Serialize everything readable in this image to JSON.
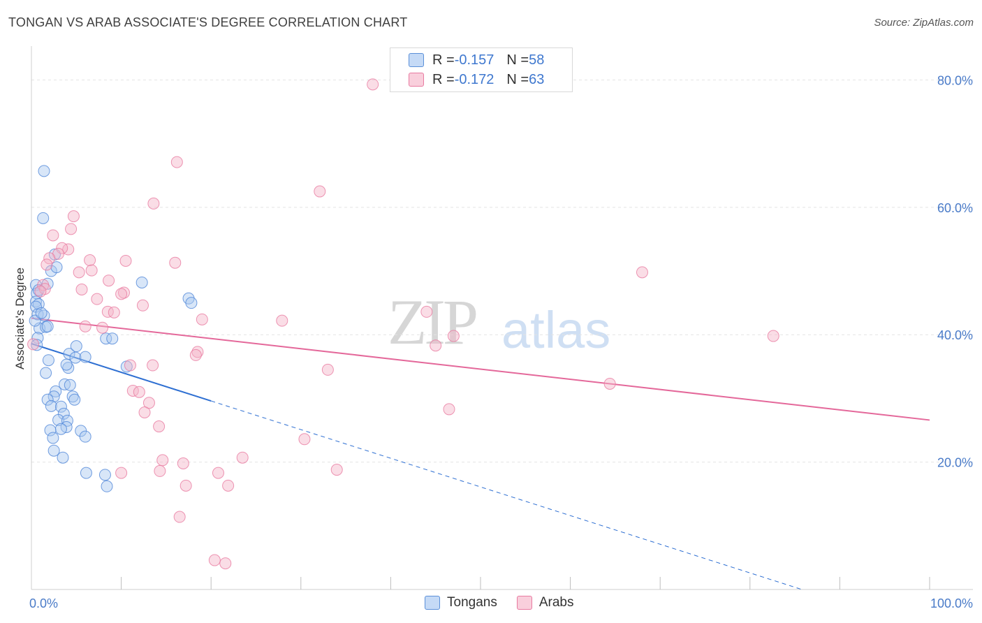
{
  "title": "TONGAN VS ARAB ASSOCIATE'S DEGREE CORRELATION CHART",
  "source": "Source: ZipAtlas.com",
  "watermark": {
    "zip": "ZIP",
    "atlas": "atlas"
  },
  "legend_top": {
    "rows": [
      {
        "r_label": "R = ",
        "r_value": "-0.157",
        "n_label": "N = ",
        "n_value": "58",
        "color": "#a9c8f0"
      },
      {
        "r_label": "R = ",
        "r_value": "-0.172",
        "n_label": "N = ",
        "n_value": "63",
        "color": "#f5b3c8"
      }
    ]
  },
  "legend_bottom": [
    {
      "label": "Tongans",
      "color": "#a9c8f0"
    },
    {
      "label": "Arabs",
      "color": "#f5b3c8"
    }
  ],
  "colors": {
    "tongan_fill": "#a9c8f0",
    "tongan_stroke": "#4f86d8",
    "tongan_line": "#2e6fd2",
    "arab_fill": "#f5b3c8",
    "arab_stroke": "#e87aa0",
    "arab_line": "#e4689a",
    "grid": "#e4e4e4",
    "tick": "#4a7bc8"
  },
  "chart_data": {
    "type": "scatter",
    "title": "TONGAN VS ARAB ASSOCIATE'S DEGREE CORRELATION CHART",
    "xlabel": "",
    "ylabel": "Associate's Degree",
    "xlim": [
      0,
      100
    ],
    "ylim": [
      0,
      84
    ],
    "x_tick_labels": [
      {
        "value": 0,
        "label": "0.0%"
      },
      {
        "value": 100,
        "label": "100.0%"
      }
    ],
    "y_tick_labels": [
      {
        "value": 20,
        "label": "20.0%"
      },
      {
        "value": 40,
        "label": "40.0%"
      },
      {
        "value": 60,
        "label": "60.0%"
      },
      {
        "value": 80,
        "label": "80.0%"
      }
    ],
    "series": [
      {
        "name": "Tongans",
        "r": -0.157,
        "n": 58,
        "trend": {
          "x0": 0,
          "y0": 38.6,
          "x1": 20,
          "y1": 29.6,
          "dash_to_x": 100
        },
        "points": [
          [
            1.4,
            65.7
          ],
          [
            1.3,
            58.3
          ],
          [
            0.5,
            47.8
          ],
          [
            0.6,
            46.5
          ],
          [
            0.5,
            45.2
          ],
          [
            0.8,
            44.8
          ],
          [
            0.5,
            44.4
          ],
          [
            0.7,
            43.2
          ],
          [
            1.4,
            43.0
          ],
          [
            0.9,
            41.0
          ],
          [
            1.6,
            41.2
          ],
          [
            1.8,
            48.0
          ],
          [
            2.2,
            50.0
          ],
          [
            2.8,
            50.6
          ],
          [
            2.6,
            52.6
          ],
          [
            0.7,
            39.5
          ],
          [
            0.8,
            47.0
          ],
          [
            1.9,
            36.0
          ],
          [
            1.6,
            34.0
          ],
          [
            4.2,
            37.0
          ],
          [
            5.0,
            38.2
          ],
          [
            4.9,
            36.4
          ],
          [
            4.1,
            34.8
          ],
          [
            3.7,
            32.2
          ],
          [
            4.3,
            32.1
          ],
          [
            2.7,
            31.1
          ],
          [
            2.5,
            30.3
          ],
          [
            1.8,
            29.8
          ],
          [
            4.6,
            30.3
          ],
          [
            4.8,
            29.8
          ],
          [
            2.2,
            28.8
          ],
          [
            3.3,
            28.7
          ],
          [
            3.6,
            27.6
          ],
          [
            3.0,
            26.6
          ],
          [
            4.0,
            26.5
          ],
          [
            3.9,
            25.5
          ],
          [
            3.3,
            25.2
          ],
          [
            2.1,
            25.0
          ],
          [
            5.5,
            24.9
          ],
          [
            6.0,
            24.0
          ],
          [
            2.4,
            23.8
          ],
          [
            2.5,
            21.8
          ],
          [
            3.5,
            20.7
          ],
          [
            6.1,
            18.3
          ],
          [
            8.2,
            18.0
          ],
          [
            8.4,
            16.2
          ],
          [
            8.3,
            39.4
          ],
          [
            9.0,
            39.4
          ],
          [
            10.6,
            35.0
          ],
          [
            12.3,
            48.2
          ],
          [
            17.5,
            45.7
          ],
          [
            17.8,
            45.0
          ],
          [
            0.4,
            42.2
          ],
          [
            1.1,
            43.4
          ],
          [
            1.8,
            41.3
          ],
          [
            3.9,
            35.3
          ],
          [
            6.0,
            36.5
          ],
          [
            0.6,
            38.4
          ]
        ]
      },
      {
        "name": "Arabs",
        "r": -0.172,
        "n": 63,
        "trend": {
          "x0": 0,
          "y0": 42.6,
          "x1": 100,
          "y1": 26.6
        },
        "points": [
          [
            38.0,
            79.3
          ],
          [
            16.2,
            67.1
          ],
          [
            32.1,
            62.5
          ],
          [
            13.6,
            60.6
          ],
          [
            4.7,
            58.6
          ],
          [
            4.4,
            56.6
          ],
          [
            2.4,
            55.6
          ],
          [
            4.1,
            53.4
          ],
          [
            3.4,
            53.6
          ],
          [
            3.0,
            52.7
          ],
          [
            6.5,
            51.7
          ],
          [
            2.0,
            52.0
          ],
          [
            1.7,
            51.0
          ],
          [
            10.5,
            51.6
          ],
          [
            16.0,
            51.3
          ],
          [
            6.7,
            50.1
          ],
          [
            5.3,
            49.8
          ],
          [
            8.6,
            48.5
          ],
          [
            1.3,
            47.8
          ],
          [
            1.5,
            47.2
          ],
          [
            5.6,
            47.1
          ],
          [
            10.3,
            46.6
          ],
          [
            10.0,
            46.4
          ],
          [
            7.3,
            45.6
          ],
          [
            12.4,
            44.6
          ],
          [
            8.5,
            43.6
          ],
          [
            9.2,
            43.5
          ],
          [
            19.0,
            42.4
          ],
          [
            27.9,
            42.2
          ],
          [
            44.0,
            43.6
          ],
          [
            6.0,
            41.3
          ],
          [
            7.9,
            41.1
          ],
          [
            47.0,
            39.8
          ],
          [
            45.0,
            38.3
          ],
          [
            82.6,
            39.8
          ],
          [
            18.5,
            37.3
          ],
          [
            18.3,
            36.8
          ],
          [
            11.0,
            35.2
          ],
          [
            13.5,
            35.2
          ],
          [
            33.0,
            34.5
          ],
          [
            64.4,
            32.3
          ],
          [
            11.3,
            31.2
          ],
          [
            12.0,
            31.0
          ],
          [
            13.1,
            29.3
          ],
          [
            12.6,
            27.8
          ],
          [
            46.5,
            28.3
          ],
          [
            14.2,
            25.6
          ],
          [
            30.4,
            23.6
          ],
          [
            14.6,
            20.3
          ],
          [
            16.9,
            19.8
          ],
          [
            23.5,
            20.7
          ],
          [
            10.0,
            18.3
          ],
          [
            14.3,
            18.6
          ],
          [
            20.8,
            18.3
          ],
          [
            34.0,
            18.8
          ],
          [
            17.2,
            16.3
          ],
          [
            21.9,
            16.3
          ],
          [
            16.5,
            11.4
          ],
          [
            20.4,
            4.6
          ],
          [
            21.6,
            4.1
          ],
          [
            1.0,
            46.8
          ],
          [
            0.2,
            38.5
          ],
          [
            68.0,
            49.8
          ]
        ]
      }
    ]
  }
}
